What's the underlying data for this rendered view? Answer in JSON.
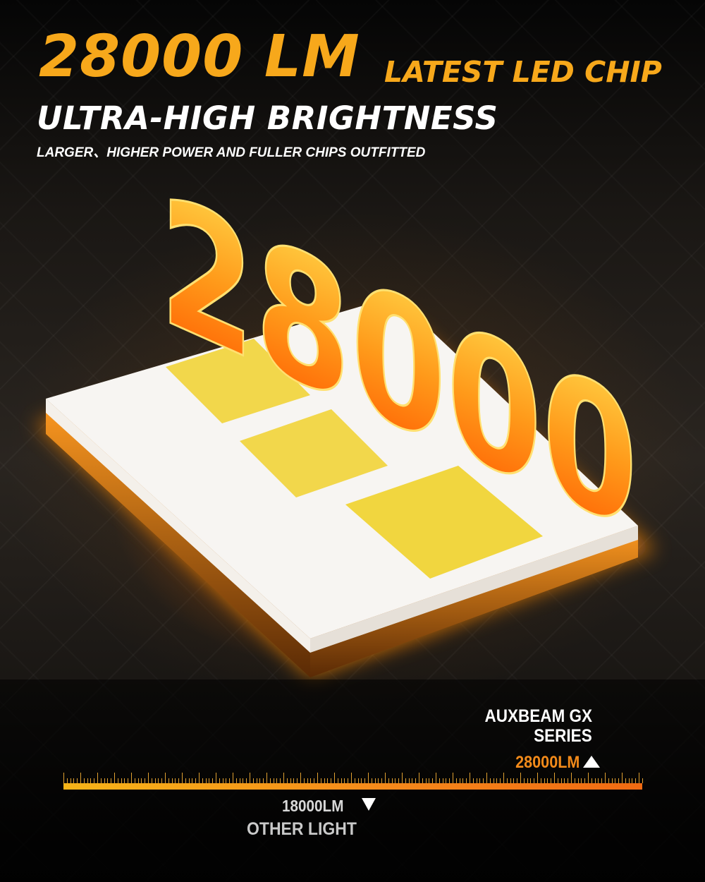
{
  "headline": {
    "lumens": "28000 LM",
    "tag": "LATEST LED CHIP",
    "subtitle": "ULTRA-HIGH BRIGHTNESS",
    "description": "LARGER、HIGHER POWER AND FULLER CHIPS OUTFITTED"
  },
  "chip": {
    "number": "28000"
  },
  "comparison": {
    "brand_line1": "AUXBEAM GX",
    "brand_line2": "SERIES",
    "brand_value": "28000LM",
    "other_value": "18000LM",
    "other_label": "OTHER LIGHT"
  },
  "colors": {
    "accent": "#f7a81b",
    "bar_start": "#f7b418",
    "bar_end": "#f06a12"
  }
}
